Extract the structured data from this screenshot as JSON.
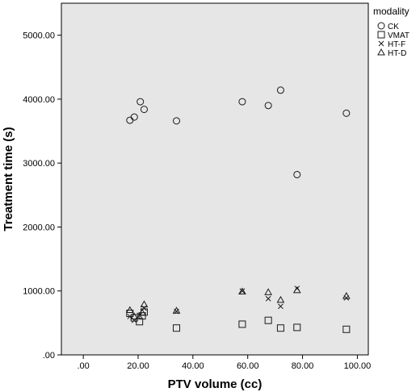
{
  "chart_data": {
    "type": "scatter",
    "title": "",
    "xlabel": "PTV volume (cc)",
    "ylabel": "Treatment time (s)",
    "xlim": [
      -8,
      104
    ],
    "ylim": [
      0,
      5500
    ],
    "x_ticks": [
      0,
      20,
      40,
      60,
      80,
      100
    ],
    "x_tick_labels": [
      ".00",
      "20.00",
      "40.00",
      "60.00",
      "80.00",
      "100.00"
    ],
    "y_ticks": [
      0,
      1000,
      2000,
      3000,
      4000,
      5000
    ],
    "y_tick_labels": [
      ".00",
      "1000.00",
      "2000.00",
      "3000.00",
      "4000.00",
      "5000.00"
    ],
    "grid": false,
    "legend": {
      "title": "modality",
      "placement": "outside-top-right"
    },
    "colors": {
      "plot_background": "#e6e6e6",
      "marker": "#1a1a1a"
    },
    "series": [
      {
        "name": "CK",
        "marker": "circle",
        "points": [
          [
            17,
            3670
          ],
          [
            18.6,
            3720
          ],
          [
            20.8,
            3960
          ],
          [
            22.2,
            3840
          ],
          [
            34,
            3660
          ],
          [
            58,
            3960
          ],
          [
            67.5,
            3900
          ],
          [
            72,
            4140
          ],
          [
            78,
            2820
          ],
          [
            96,
            3780
          ]
        ]
      },
      {
        "name": "VMAT",
        "marker": "square",
        "points": [
          [
            17,
            650
          ],
          [
            18.6,
            580
          ],
          [
            20.5,
            520
          ],
          [
            21.5,
            610
          ],
          [
            22.2,
            670
          ],
          [
            34,
            420
          ],
          [
            58,
            480
          ],
          [
            67.5,
            540
          ],
          [
            72,
            420
          ],
          [
            78,
            430
          ],
          [
            96,
            400
          ]
        ]
      },
      {
        "name": "HT-F",
        "marker": "x",
        "points": [
          [
            17,
            600
          ],
          [
            18.6,
            540
          ],
          [
            20.5,
            620
          ],
          [
            22.2,
            730
          ],
          [
            34,
            680
          ],
          [
            58,
            1000
          ],
          [
            67.5,
            880
          ],
          [
            72,
            760
          ],
          [
            78,
            1040
          ],
          [
            96,
            890
          ]
        ]
      },
      {
        "name": "HT-D",
        "marker": "triangle",
        "points": [
          [
            17,
            700
          ],
          [
            18.6,
            600
          ],
          [
            21.5,
            660
          ],
          [
            22.2,
            790
          ],
          [
            34,
            690
          ],
          [
            58,
            990
          ],
          [
            67.5,
            980
          ],
          [
            72,
            860
          ],
          [
            78,
            1010
          ],
          [
            96,
            920
          ]
        ]
      }
    ]
  }
}
